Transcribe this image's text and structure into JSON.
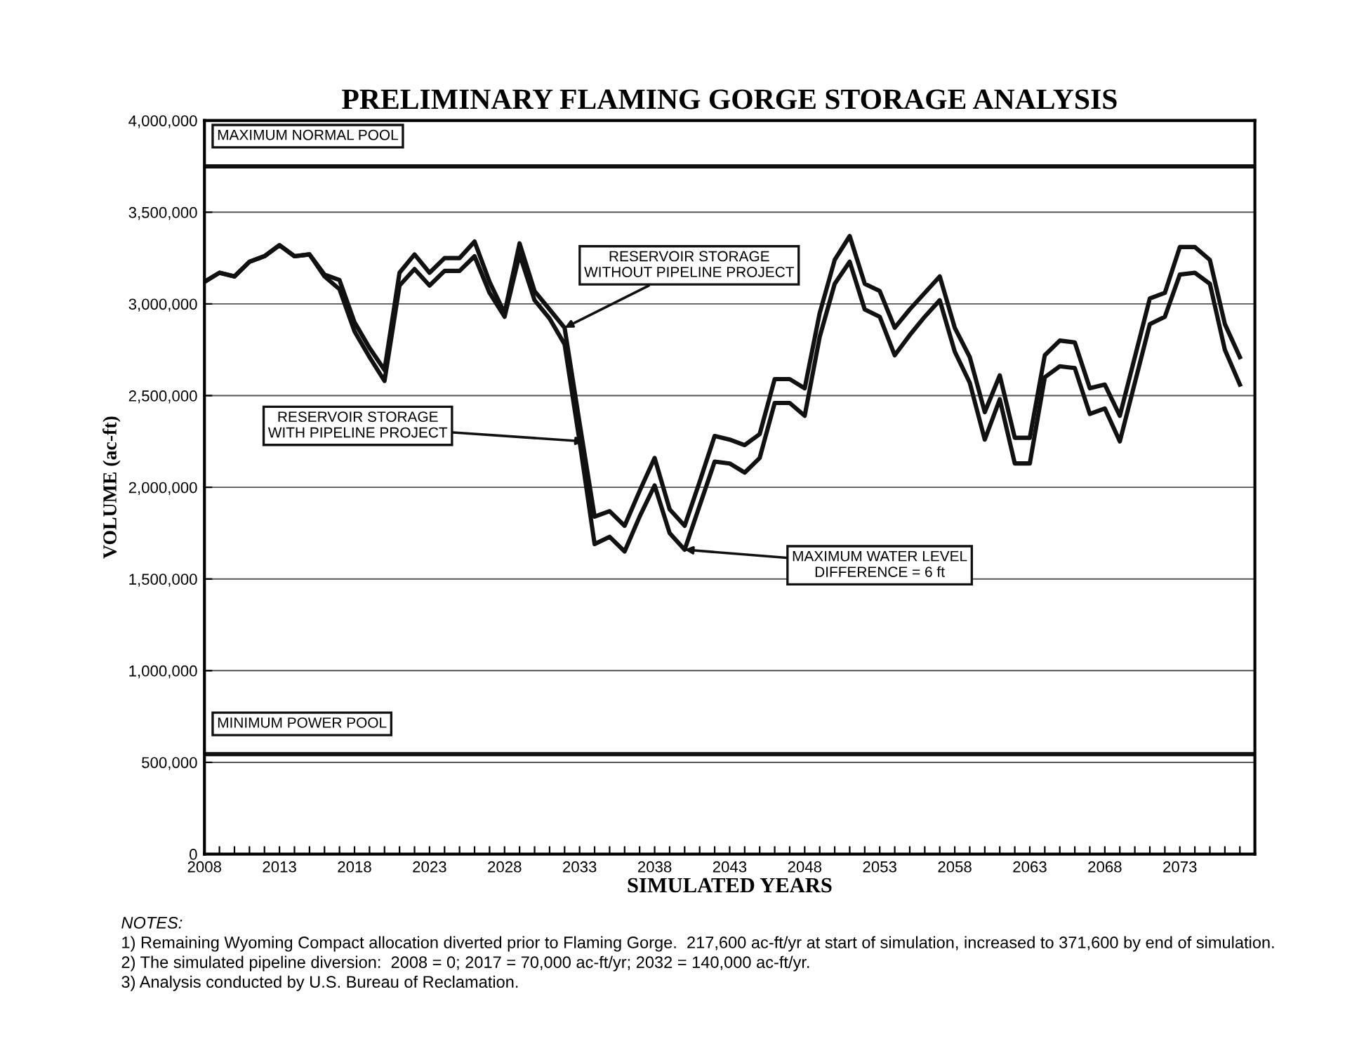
{
  "chart_data": {
    "type": "line",
    "title": "PRELIMINARY FLAMING GORGE STORAGE ANALYSIS",
    "xlabel": "SIMULATED YEARS",
    "ylabel": "VOLUME (ac-ft)",
    "x": [
      2008,
      2009,
      2010,
      2011,
      2012,
      2013,
      2014,
      2015,
      2016,
      2017,
      2018,
      2019,
      2020,
      2021,
      2022,
      2023,
      2024,
      2025,
      2026,
      2027,
      2028,
      2029,
      2030,
      2031,
      2032,
      2033,
      2034,
      2035,
      2036,
      2037,
      2038,
      2039,
      2040,
      2041,
      2042,
      2043,
      2044,
      2045,
      2046,
      2047,
      2048,
      2049,
      2050,
      2051,
      2052,
      2053,
      2054,
      2055,
      2056,
      2057,
      2058,
      2059,
      2060,
      2061,
      2062,
      2063,
      2064,
      2065,
      2066,
      2067,
      2068,
      2069,
      2070,
      2071,
      2072,
      2073,
      2074,
      2075,
      2076,
      2077
    ],
    "series": [
      {
        "color": "#111111",
        "values": [
          3120000,
          3170000,
          3150000,
          3230000,
          3260000,
          3320000,
          3260000,
          3270000,
          3160000,
          3130000,
          2900000,
          2760000,
          2640000,
          3170000,
          3270000,
          3170000,
          3250000,
          3250000,
          3340000,
          3120000,
          2950000,
          3330000,
          3070000,
          2970000,
          2870000,
          2350000,
          1840000,
          1870000,
          1790000,
          1980000,
          2160000,
          1880000,
          1790000,
          2030000,
          2280000,
          2260000,
          2230000,
          2290000,
          2590000,
          2590000,
          2540000,
          2950000,
          3240000,
          3370000,
          3110000,
          3070000,
          2870000,
          2970000,
          3060000,
          3150000,
          2870000,
          2710000,
          2410000,
          2610000,
          2270000,
          2270000,
          2720000,
          2800000,
          2790000,
          2540000,
          2560000,
          2390000,
          2710000,
          3030000,
          3060000,
          3310000,
          3310000,
          3240000,
          2890000,
          2710000
        ]
      },
      {
        "color": "#111111",
        "values": [
          3120000,
          3170000,
          3150000,
          3230000,
          3260000,
          3320000,
          3260000,
          3270000,
          3150000,
          3080000,
          2850000,
          2710000,
          2580000,
          3100000,
          3190000,
          3100000,
          3180000,
          3180000,
          3260000,
          3060000,
          2930000,
          3270000,
          3020000,
          2920000,
          2780000,
          2250000,
          1690000,
          1730000,
          1650000,
          1840000,
          2010000,
          1750000,
          1660000,
          1900000,
          2140000,
          2130000,
          2080000,
          2160000,
          2460000,
          2460000,
          2390000,
          2820000,
          3110000,
          3230000,
          2970000,
          2930000,
          2720000,
          2830000,
          2930000,
          3020000,
          2740000,
          2570000,
          2260000,
          2480000,
          2130000,
          2130000,
          2600000,
          2660000,
          2650000,
          2400000,
          2430000,
          2250000,
          2570000,
          2890000,
          2930000,
          3160000,
          3170000,
          3110000,
          2750000,
          2560000
        ]
      }
    ],
    "xlim": [
      2008,
      2078
    ],
    "ylim": [
      0,
      4000000
    ],
    "xticks": [
      2008,
      {
        "value": 2009,
        "label": null
      },
      {
        "value": 2010,
        "label": null
      },
      {
        "value": 2011,
        "label": null
      },
      {
        "value": 2012,
        "label": null
      },
      2013,
      {
        "value": 2014,
        "label": null
      },
      {
        "value": 2015,
        "label": null
      },
      {
        "value": 2016,
        "label": null
      },
      {
        "value": 2017,
        "label": null
      },
      2018,
      {
        "value": 2019,
        "label": null
      },
      {
        "value": 2020,
        "label": null
      },
      {
        "value": 2021,
        "label": null
      },
      {
        "value": 2022,
        "label": null
      },
      2023,
      {
        "value": 2024,
        "label": null
      },
      {
        "value": 2025,
        "label": null
      },
      {
        "value": 2026,
        "label": null
      },
      {
        "value": 2027,
        "label": null
      },
      2028,
      {
        "value": 2029,
        "label": null
      },
      {
        "value": 2030,
        "label": null
      },
      {
        "value": 2031,
        "label": null
      },
      {
        "value": 2032,
        "label": null
      },
      2033,
      {
        "value": 2034,
        "label": null
      },
      {
        "value": 2035,
        "label": null
      },
      {
        "value": 2036,
        "label": null
      },
      {
        "value": 2037,
        "label": null
      },
      2038,
      {
        "value": 2039,
        "label": null
      },
      {
        "value": 2040,
        "label": null
      },
      {
        "value": 2041,
        "label": null
      },
      {
        "value": 2042,
        "label": null
      },
      2043,
      {
        "value": 2044,
        "label": null
      },
      {
        "value": 2045,
        "label": null
      },
      {
        "value": 2046,
        "label": null
      },
      {
        "value": 2047,
        "label": null
      },
      2048,
      {
        "value": 2049,
        "label": null
      },
      {
        "value": 2050,
        "label": null
      },
      {
        "value": 2051,
        "label": null
      },
      {
        "value": 2052,
        "label": null
      },
      2053,
      {
        "value": 2054,
        "label": null
      },
      {
        "value": 2055,
        "label": null
      },
      {
        "value": 2056,
        "label": null
      },
      {
        "value": 2057,
        "label": null
      },
      2058,
      {
        "value": 2059,
        "label": null
      },
      {
        "value": 2060,
        "label": null
      },
      {
        "value": 2061,
        "label": null
      },
      {
        "value": 2062,
        "label": null
      },
      2063,
      {
        "value": 2064,
        "label": null
      },
      {
        "value": 2065,
        "label": null
      },
      {
        "value": 2066,
        "label": null
      },
      {
        "value": 2067,
        "label": null
      },
      2068,
      {
        "value": 2069,
        "label": null
      },
      {
        "value": 2070,
        "label": null
      },
      {
        "value": 2071,
        "label": null
      },
      {
        "value": 2072,
        "label": null
      },
      2073,
      {
        "value": 2074,
        "label": null
      },
      {
        "value": 2075,
        "label": null
      },
      {
        "value": 2076,
        "label": null
      },
      {
        "value": 2077,
        "label": null
      },
      {
        "value": 2078,
        "label": null
      }
    ],
    "yticks": [
      {
        "value": 0,
        "label": "0"
      },
      {
        "value": 500000,
        "label": "500,000"
      },
      {
        "value": 1000000,
        "label": "1,000,000"
      },
      {
        "value": 1500000,
        "label": "1,500,000"
      },
      {
        "value": 2000000,
        "label": "2,000,000"
      },
      {
        "value": 2500000,
        "label": "2,500,000"
      },
      {
        "value": 3000000,
        "label": "3,000,000"
      },
      {
        "value": 3500000,
        "label": "3,500,000"
      },
      {
        "value": 4000000,
        "label": "4,000,000"
      }
    ],
    "grid": "y",
    "line_style": "solid",
    "marker": "none",
    "legend": false,
    "ref_lines": [
      {
        "axis": "y",
        "value": 3750000,
        "label": "MAXIMUM NORMAL POOL",
        "color": "#111111"
      },
      {
        "axis": "y",
        "value": 545000,
        "label": "MINIMUM POWER POOL",
        "color": "#111111"
      }
    ],
    "annotations": [
      {
        "text": "RESERVOIR STORAGE\nWITHOUT PIPELINE PROJECT",
        "x": 2032,
        "y": 2870000
      },
      {
        "text": "RESERVOIR STORAGE\nWITH PIPELINE PROJECT",
        "x": 2033.3,
        "y": 2250000
      },
      {
        "text": "MAXIMUM WATER LEVEL\nDIFFERENCE = 6 ft",
        "x": 2040,
        "y": 1660000
      },
      "NOTES:",
      "1) Remaining Wyoming Compact allocation diverted prior to Flaming Gorge.  217,600 ac-ft/yr at start of simulation, increased to 371,600 by end of simulation.",
      "2) The simulated pipeline diversion:  2008 = 0; 2017 = 70,000 ac-ft/yr; 2032 = 140,000 ac-ft/yr.",
      "3) Analysis conducted by U.S. Bureau of Reclamation."
    ]
  }
}
